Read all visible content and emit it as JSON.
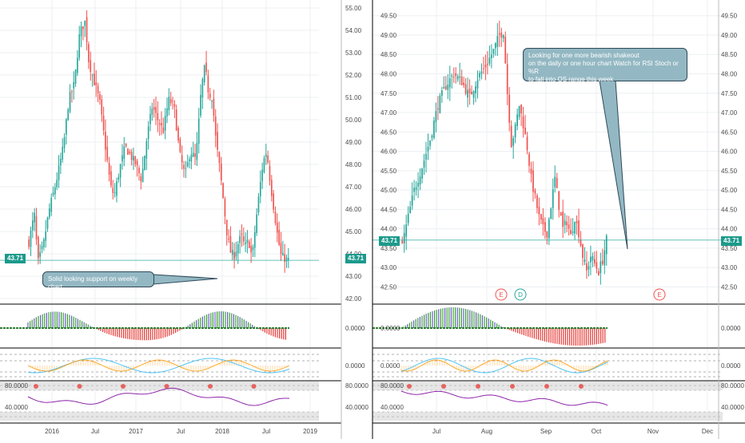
{
  "colors": {
    "up": "#26a69a",
    "down": "#ef5350",
    "grid": "#eceff2",
    "axis_text": "#4a4a4a",
    "price_line": "#26a69a",
    "callout_bg": "#93b8c3",
    "histo_pos": "#3c9b3c",
    "histo_neg": "#e53935",
    "histo_blue": "#6a5acd",
    "purple": "#8e24aa",
    "cyan": "#4fc3f7",
    "orange": "#ff9800"
  },
  "chart_data": [
    {
      "type": "candlestick",
      "panel": "weekly",
      "y_ticks": [
        "55.00",
        "54.00",
        "53.00",
        "52.00",
        "51.00",
        "50.00",
        "49.00",
        "48.00",
        "47.00",
        "46.00",
        "45.00",
        "44.00",
        "43.00",
        "42.00"
      ],
      "ylim": [
        42,
        55
      ],
      "x_ticks": [
        "2016",
        "Jul",
        "2017",
        "Jul",
        "2018",
        "Jul",
        "2019"
      ],
      "last_price": "43.71",
      "close_path": [
        [
          0,
          44.5
        ],
        [
          3,
          45.8
        ],
        [
          5,
          43.6
        ],
        [
          8,
          44.4
        ],
        [
          11,
          45.9
        ],
        [
          15,
          47.2
        ],
        [
          19,
          48.8
        ],
        [
          22,
          50.9
        ],
        [
          25,
          51.6
        ],
        [
          28,
          53.9
        ],
        [
          31,
          54.4
        ],
        [
          33,
          52.6
        ],
        [
          36,
          51.7
        ],
        [
          39,
          50.8
        ],
        [
          42,
          48.9
        ],
        [
          45,
          47.0
        ],
        [
          47,
          46.6
        ],
        [
          50,
          47.8
        ],
        [
          53,
          48.8
        ],
        [
          56,
          48.4
        ],
        [
          59,
          48.0
        ],
        [
          62,
          47.3
        ],
        [
          65,
          49.2
        ],
        [
          68,
          50.6
        ],
        [
          71,
          50.0
        ],
        [
          74,
          49.5
        ],
        [
          77,
          50.9
        ],
        [
          80,
          50.6
        ],
        [
          83,
          48.5
        ],
        [
          86,
          47.5
        ],
        [
          89,
          48.6
        ],
        [
          92,
          48.2
        ],
        [
          95,
          51.4
        ],
        [
          97,
          52.4
        ],
        [
          99,
          51.2
        ],
        [
          101,
          51.0
        ],
        [
          103,
          49.1
        ],
        [
          105,
          47.9
        ],
        [
          107,
          46.5
        ],
        [
          109,
          45.0
        ],
        [
          111,
          44.1
        ],
        [
          113,
          43.9
        ],
        [
          115,
          44.4
        ],
        [
          117,
          44.8
        ],
        [
          119,
          44.3
        ],
        [
          121,
          44.6
        ],
        [
          123,
          43.8
        ],
        [
          125,
          45.4
        ],
        [
          127,
          46.8
        ],
        [
          129,
          48.1
        ],
        [
          131,
          48.6
        ],
        [
          133,
          47.2
        ],
        [
          135,
          46.0
        ],
        [
          137,
          44.8
        ],
        [
          139,
          43.9
        ],
        [
          141,
          43.8
        ],
        [
          143,
          43.7
        ]
      ],
      "callout": "Solid looking support on weekly chart"
    },
    {
      "type": "candlestick",
      "panel": "daily",
      "y_ticks": [
        "49.50",
        "49.00",
        "48.50",
        "48.00",
        "47.50",
        "47.00",
        "46.50",
        "46.00",
        "45.50",
        "45.00",
        "44.50",
        "44.00",
        "43.50",
        "43.00",
        "42.50"
      ],
      "ylim": [
        42.2,
        49.7
      ],
      "x_ticks": [
        "Jul",
        "Aug",
        "Sep",
        "Oct",
        "Nov",
        "Dec"
      ],
      "last_price": "43.71",
      "close_path": [
        [
          0,
          43.6
        ],
        [
          3,
          44.3
        ],
        [
          6,
          45.0
        ],
        [
          10,
          45.6
        ],
        [
          14,
          46.3
        ],
        [
          18,
          47.2
        ],
        [
          22,
          47.7
        ],
        [
          26,
          48.0
        ],
        [
          30,
          47.8
        ],
        [
          34,
          47.4
        ],
        [
          38,
          47.9
        ],
        [
          42,
          48.2
        ],
        [
          46,
          48.6
        ],
        [
          49,
          49.0
        ],
        [
          51,
          49.1
        ],
        [
          53,
          47.5
        ],
        [
          55,
          46.2
        ],
        [
          57,
          46.6
        ],
        [
          59,
          47.2
        ],
        [
          61,
          46.7
        ],
        [
          63,
          46.1
        ],
        [
          65,
          45.3
        ],
        [
          67,
          44.8
        ],
        [
          69,
          44.3
        ],
        [
          71,
          44.0
        ],
        [
          73,
          43.9
        ],
        [
          75,
          44.6
        ],
        [
          77,
          45.3
        ],
        [
          79,
          44.6
        ],
        [
          81,
          44.0
        ],
        [
          83,
          44.2
        ],
        [
          85,
          43.8
        ],
        [
          87,
          44.3
        ],
        [
          89,
          43.9
        ],
        [
          91,
          43.3
        ],
        [
          93,
          42.9
        ],
        [
          95,
          43.3
        ],
        [
          97,
          43.1
        ],
        [
          99,
          42.9
        ],
        [
          101,
          43.2
        ],
        [
          103,
          43.71
        ]
      ],
      "callout": "Looking for one more bearish shakeout\non the daily or one hour chart     Watch for RSI Stoch or %R\nto fall into OS range this week",
      "markers": [
        "E",
        "D",
        "E"
      ]
    }
  ],
  "indicators": {
    "histogram_label": "0.0000",
    "oscillator_label": "0.0000",
    "rsi_labels": [
      "80.0000",
      "40.0000"
    ]
  }
}
